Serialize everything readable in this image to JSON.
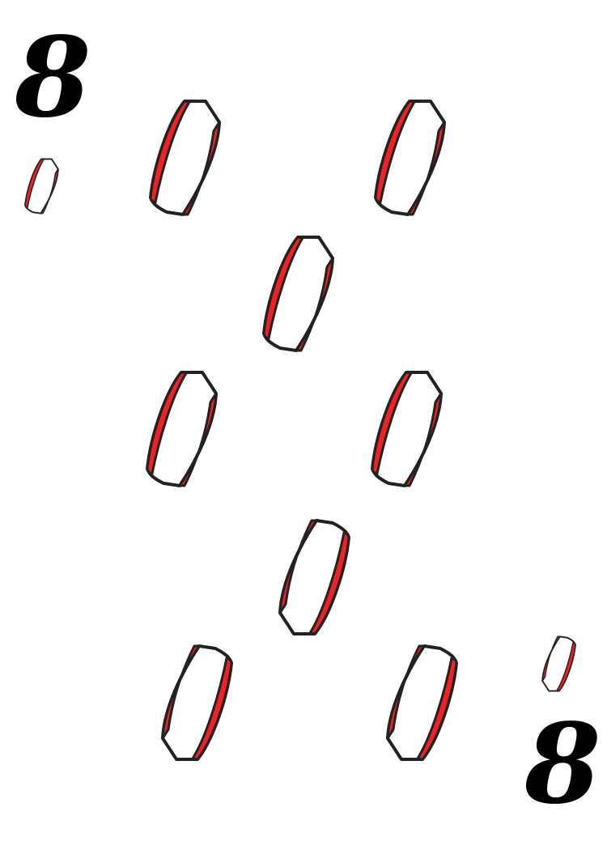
{
  "card": {
    "rank": "8",
    "suit": "seed-pip",
    "colors": {
      "background": "#ffffff",
      "pip_stripe": "#ee2224",
      "pip_body": "#ffffff",
      "pip_outline": "#222222",
      "rank_text": "#000000"
    },
    "pip_count": 8,
    "corner_index_count": 2
  }
}
